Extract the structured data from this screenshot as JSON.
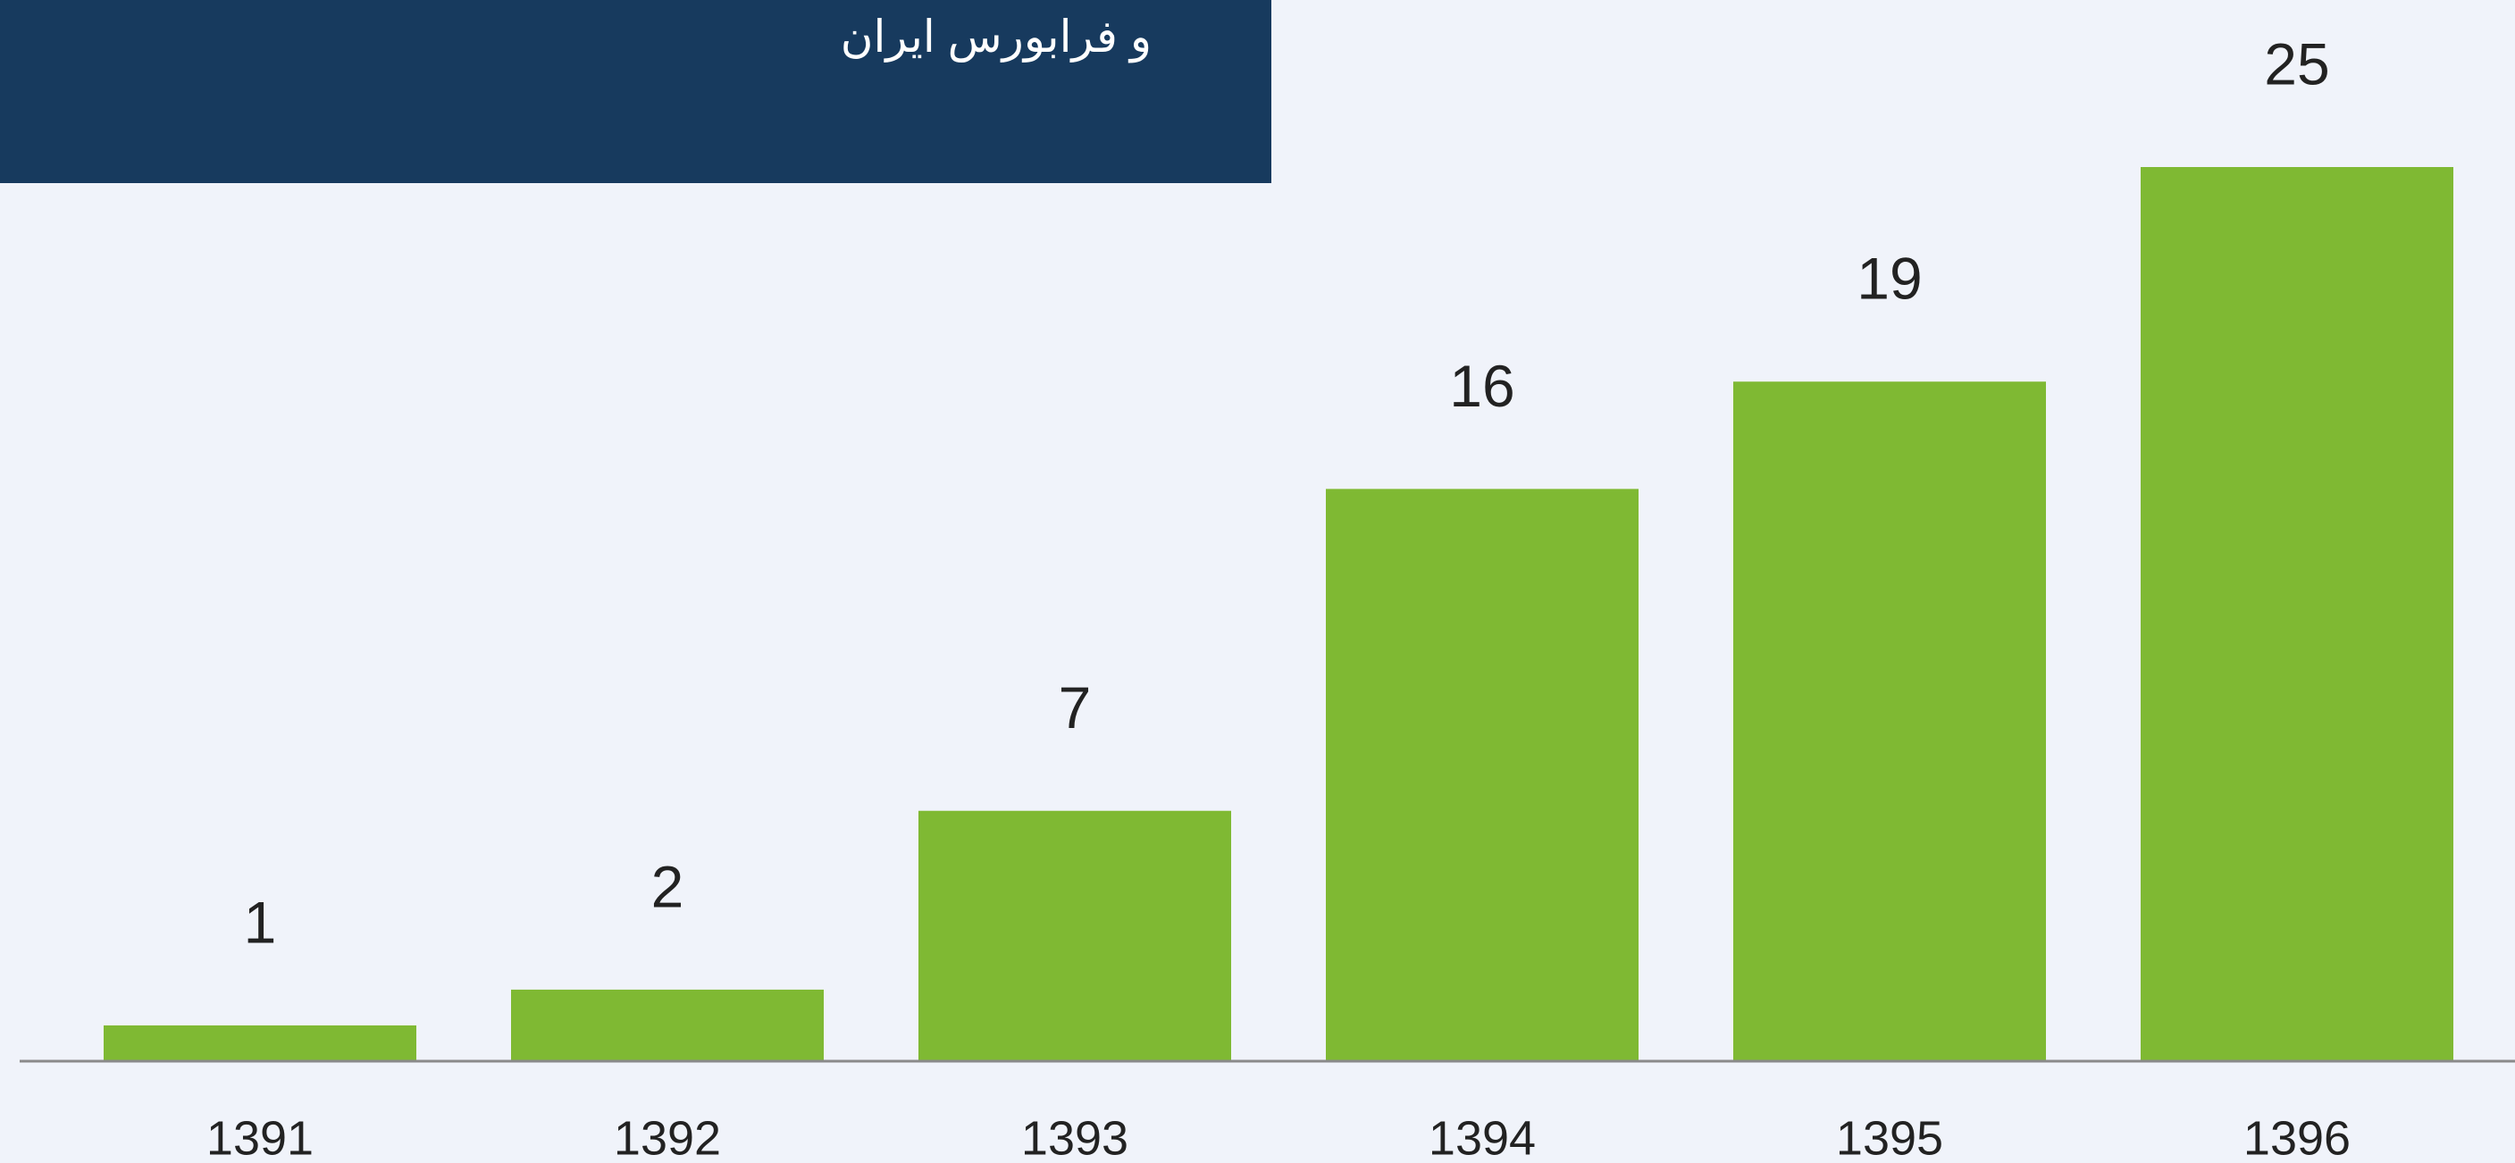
{
  "chart_data": {
    "type": "bar",
    "title": "و فرابورس ایران",
    "categories": [
      "1391",
      "1392",
      "1393",
      "1394",
      "1395",
      "1396"
    ],
    "values": [
      1,
      2,
      7,
      16,
      19,
      25
    ],
    "color": "#7fb933",
    "ylim": [
      0,
      25
    ]
  }
}
